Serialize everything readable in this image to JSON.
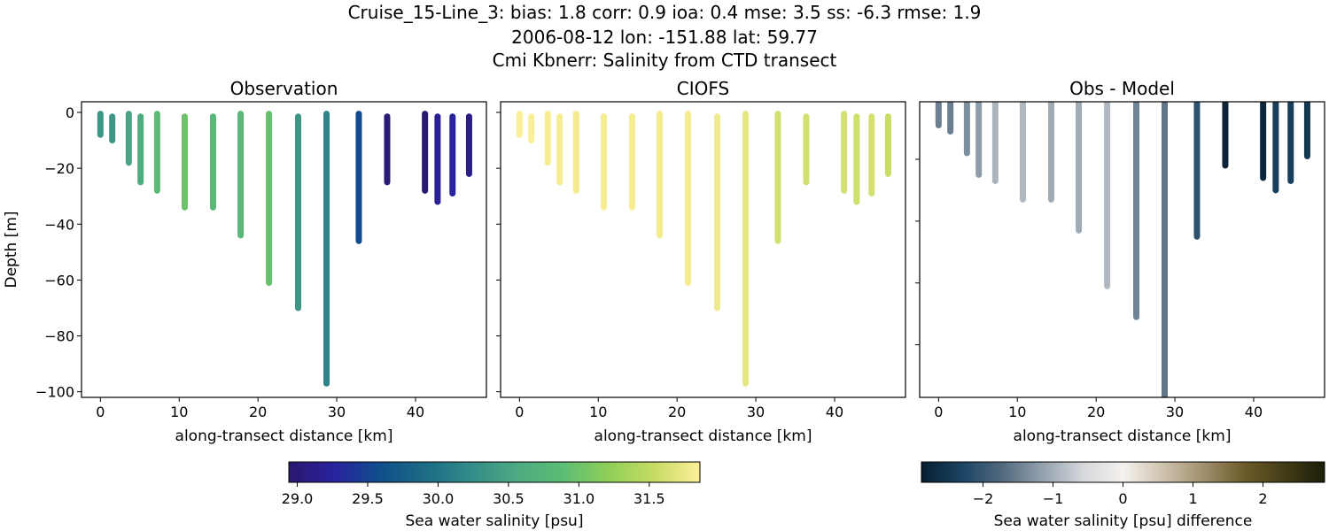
{
  "title_lines": [
    "Cruise_15-Line_3: bias: 1.8  corr: 0.9  ioa: 0.4  mse: 3.5  ss: -6.3  rmse: 1.9",
    "2006-08-12 lon: -151.88 lat: 59.77",
    "Cmi Kbnerr: Salinity from CTD transect"
  ],
  "chart_data": [
    {
      "type": "scatter",
      "title": "Observation",
      "xlabel": "along-transect distance [km]",
      "ylabel": "Depth [m]",
      "xlim": [
        -2.4,
        49.0
      ],
      "ylim": [
        -102,
        3.8
      ],
      "xticks": [
        0,
        10,
        20,
        30,
        40
      ],
      "yticks": [
        0,
        -20,
        -40,
        -60,
        -80,
        -100
      ],
      "colormap": "haline",
      "stations_km": [
        0,
        1.5,
        3.6,
        5.1,
        7.2,
        10.7,
        14.3,
        17.8,
        21.4,
        25.1,
        28.7,
        32.8,
        36.4,
        41.2,
        42.8,
        44.7,
        46.8
      ],
      "top_depth_m": [
        -0.5,
        -1.5,
        -0.5,
        -1.5,
        -0.5,
        -1.5,
        -1.5,
        -0.5,
        -0.5,
        -1.5,
        -0.5,
        -0.5,
        -1.5,
        -0.5,
        -1.5,
        -1.5,
        -1.5
      ],
      "bottom_depth_m": [
        -8,
        -10,
        -18,
        -25,
        -28,
        -34,
        -34,
        -44,
        -61,
        -70,
        -97,
        -46,
        -25,
        -28,
        -32,
        -29,
        -22
      ],
      "salinity_psu": [
        30.35,
        30.35,
        30.5,
        30.6,
        30.85,
        31.0,
        30.8,
        30.8,
        30.95,
        30.35,
        30.15,
        29.55,
        29.0,
        28.98,
        29.2,
        29.25,
        29.1
      ]
    },
    {
      "type": "scatter",
      "title": "CIOFS",
      "xlabel": "along-transect distance [km]",
      "xlim": [
        -2.4,
        49.0
      ],
      "ylim": [
        -102,
        3.8
      ],
      "xticks": [
        0,
        10,
        20,
        30,
        40
      ],
      "colormap": "haline",
      "salinity_psu": [
        31.85,
        31.85,
        31.82,
        31.82,
        31.8,
        31.82,
        31.82,
        31.8,
        31.8,
        31.78,
        31.72,
        31.6,
        31.6,
        31.62,
        31.58,
        31.62,
        31.55
      ]
    },
    {
      "type": "scatter",
      "title": "Obs - Model",
      "xlabel": "along-transect distance [km]",
      "xlim": [
        -2.4,
        49.0
      ],
      "ylim": [
        -97,
        -1.4
      ],
      "xticks": [
        0,
        10,
        20,
        30,
        40
      ],
      "colormap": "diff",
      "bottom_depth_m": [
        -9,
        -11,
        -18,
        -25,
        -27,
        -33,
        -33,
        -43,
        -61,
        -71,
        -100,
        -45,
        -22,
        -26,
        -30,
        -27,
        -19
      ],
      "difference_psu": [
        -1.5,
        -1.5,
        -1.35,
        -1.2,
        -0.95,
        -0.9,
        -1.05,
        -1.05,
        -0.9,
        -1.45,
        -1.6,
        -2.1,
        -2.8,
        -2.75,
        -2.4,
        -2.4,
        -2.5
      ]
    }
  ],
  "colorbars": [
    {
      "label": "Sea water salinity [psu]",
      "range": [
        28.94,
        31.86
      ],
      "ticks": [
        "29.0",
        "29.5",
        "30.0",
        "30.5",
        "31.0",
        "31.5"
      ]
    },
    {
      "label": "Sea water salinity [psu] difference",
      "range": [
        -2.88,
        2.88
      ],
      "ticks": [
        "−2",
        "−1",
        "0",
        "1",
        "2"
      ]
    }
  ],
  "colormaps": {
    "haline": [
      "#2a186c",
      "#29229f",
      "#0f4f8b",
      "#1d6c86",
      "#338c88",
      "#4fa982",
      "#5cbd74",
      "#8fcf58",
      "#c6dc64",
      "#fdef9a"
    ],
    "diff": [
      "#081d30",
      "#1a4463",
      "#52697e",
      "#93a1ad",
      "#d5d7da",
      "#f4f1ee",
      "#cfc2ad",
      "#9f8f6c",
      "#6d5c2b",
      "#433c16",
      "#1c1e08"
    ]
  }
}
